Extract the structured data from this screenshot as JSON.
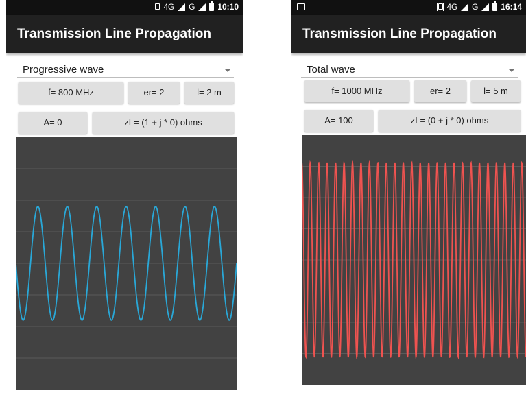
{
  "left": {
    "status": {
      "network": "4G",
      "network2": "G",
      "time": "10:10"
    },
    "app_title": "Transmission Line Propagation",
    "spinner": {
      "selected": "Progressive wave"
    },
    "buttons": {
      "freq": "f= 800 MHz",
      "er": "er= 2",
      "len": "l= 2 m",
      "amp": "A= 0",
      "zl": "zL= (1 + j * 0) ohms"
    },
    "wave_color": "#29a8d8",
    "chart_data": {
      "type": "line",
      "grid": true,
      "ylim": [
        -1,
        1
      ],
      "series": [
        {
          "x": [
            0,
            1
          ],
          "values": [
            0.5,
            0.5
          ]
        }
      ],
      "amplitude": 0.45,
      "cycles": 7.5,
      "phase": 1.5708
    }
  },
  "right": {
    "status": {
      "network": "4G",
      "network2": "G",
      "time": "16:14"
    },
    "app_title": "Transmission Line Propagation",
    "spinner": {
      "selected": "Total wave"
    },
    "buttons": {
      "freq": "f= 1000 MHz",
      "er": "er= 2",
      "len": "l= 5 m",
      "amp": "A= 100",
      "zl": "zL= (0 + j * 0) ohms"
    },
    "wave_color": "#ef5350",
    "chart_data": {
      "type": "line",
      "grid": true,
      "ylim": [
        -1,
        1
      ],
      "series": [
        {
          "x": [
            0,
            1
          ],
          "values": [
            0.5,
            0.5
          ]
        }
      ],
      "amplitude": 0.78,
      "cycles": 26.5,
      "phase": 0
    }
  }
}
